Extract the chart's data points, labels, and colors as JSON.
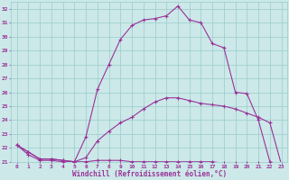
{
  "xlabel": "Windchill (Refroidissement éolien,°C)",
  "xlim": [
    -0.5,
    23.5
  ],
  "ylim": [
    21,
    32.5
  ],
  "yticks": [
    21,
    22,
    23,
    24,
    25,
    26,
    27,
    28,
    29,
    30,
    31,
    32
  ],
  "xticks": [
    0,
    1,
    2,
    3,
    4,
    5,
    6,
    7,
    8,
    9,
    10,
    11,
    12,
    13,
    14,
    15,
    16,
    17,
    18,
    19,
    20,
    21,
    22,
    23
  ],
  "bg_color": "#cce8e8",
  "grid_color": "#99cccc",
  "line_color": "#993399",
  "curve1_x": [
    0,
    1,
    2,
    3,
    4,
    5,
    6,
    7,
    8,
    9,
    10,
    11,
    12,
    13,
    14,
    15,
    16,
    17,
    18,
    19,
    20,
    21,
    22,
    23
  ],
  "curve1_y": [
    22.2,
    21.7,
    21.2,
    21.2,
    21.1,
    21.0,
    22.8,
    26.2,
    28.0,
    29.8,
    30.8,
    31.2,
    31.3,
    31.5,
    32.2,
    31.2,
    31.0,
    29.5,
    29.2,
    26.0,
    25.9,
    24.0,
    21.0,
    20.8
  ],
  "curve2_x": [
    0,
    1,
    2,
    3,
    4,
    5,
    6,
    7,
    8,
    9,
    10,
    11,
    12,
    13,
    14,
    15,
    16,
    17,
    18,
    19,
    20,
    21,
    22,
    23
  ],
  "curve2_y": [
    22.2,
    21.7,
    21.2,
    21.2,
    21.1,
    21.0,
    21.3,
    22.5,
    23.2,
    23.8,
    24.2,
    24.8,
    25.3,
    25.6,
    25.6,
    25.4,
    25.2,
    25.1,
    25.0,
    24.8,
    24.5,
    24.2,
    23.8,
    20.8
  ],
  "curve3_x": [
    0,
    1,
    2,
    3,
    4,
    5,
    6,
    7,
    8,
    9,
    10,
    11,
    12,
    13,
    14,
    15,
    16,
    17,
    18,
    19,
    20,
    21,
    22,
    23
  ],
  "curve3_y": [
    22.2,
    21.5,
    21.1,
    21.1,
    21.0,
    21.0,
    21.0,
    21.1,
    21.1,
    21.1,
    21.0,
    21.0,
    21.0,
    21.0,
    21.0,
    21.0,
    21.0,
    21.0,
    20.9,
    20.9,
    20.9,
    20.9,
    20.8,
    20.8
  ]
}
